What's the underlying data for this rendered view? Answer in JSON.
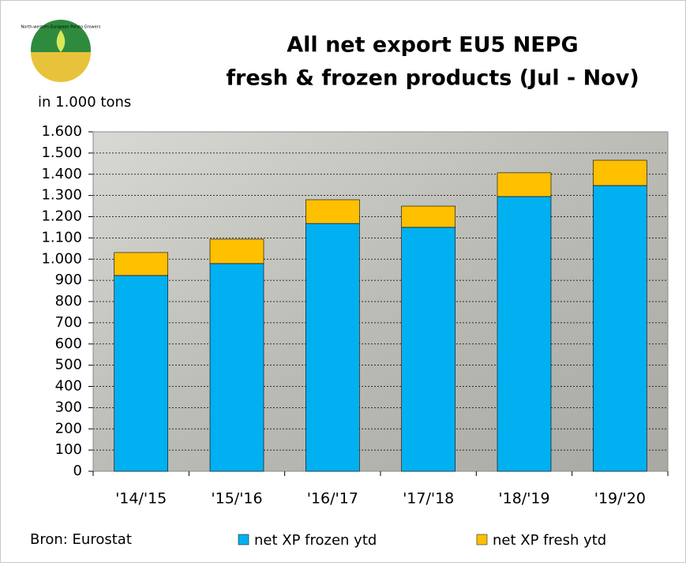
{
  "logo_text": "North-western European Potato Growers",
  "chart_data": {
    "type": "stacked-bar",
    "title": [
      "All net export EU5 NEPG",
      "fresh & frozen products (Jul - Nov)"
    ],
    "y_label": "in 1.000 tons",
    "source": "Bron: Eurostat",
    "categories": [
      "'14/'15",
      "'15/'16",
      "'16/'17",
      "'17/'18",
      "'18/'19",
      "'19/'20"
    ],
    "series": [
      {
        "name": "net XP frozen ytd",
        "color": "#00b0f0",
        "values": [
          923,
          979,
          1168,
          1150,
          1295,
          1347
        ]
      },
      {
        "name": "net XP fresh ytd",
        "color": "#ffc000",
        "values": [
          108,
          115,
          112,
          100,
          112,
          119
        ]
      }
    ],
    "ylim": [
      0,
      1600
    ],
    "yticks": [
      0,
      100,
      200,
      300,
      400,
      500,
      600,
      700,
      800,
      900,
      {
        "value": 1000,
        "label": "1.000"
      },
      {
        "value": 1100,
        "label": "1.100"
      },
      {
        "value": 1200,
        "label": "1.200"
      },
      {
        "value": 1300,
        "label": "1.300"
      },
      {
        "value": 1400,
        "label": "1.400"
      },
      {
        "value": 1500,
        "label": "1.500"
      },
      {
        "value": 1600,
        "label": "1.600"
      }
    ],
    "grid": true
  }
}
